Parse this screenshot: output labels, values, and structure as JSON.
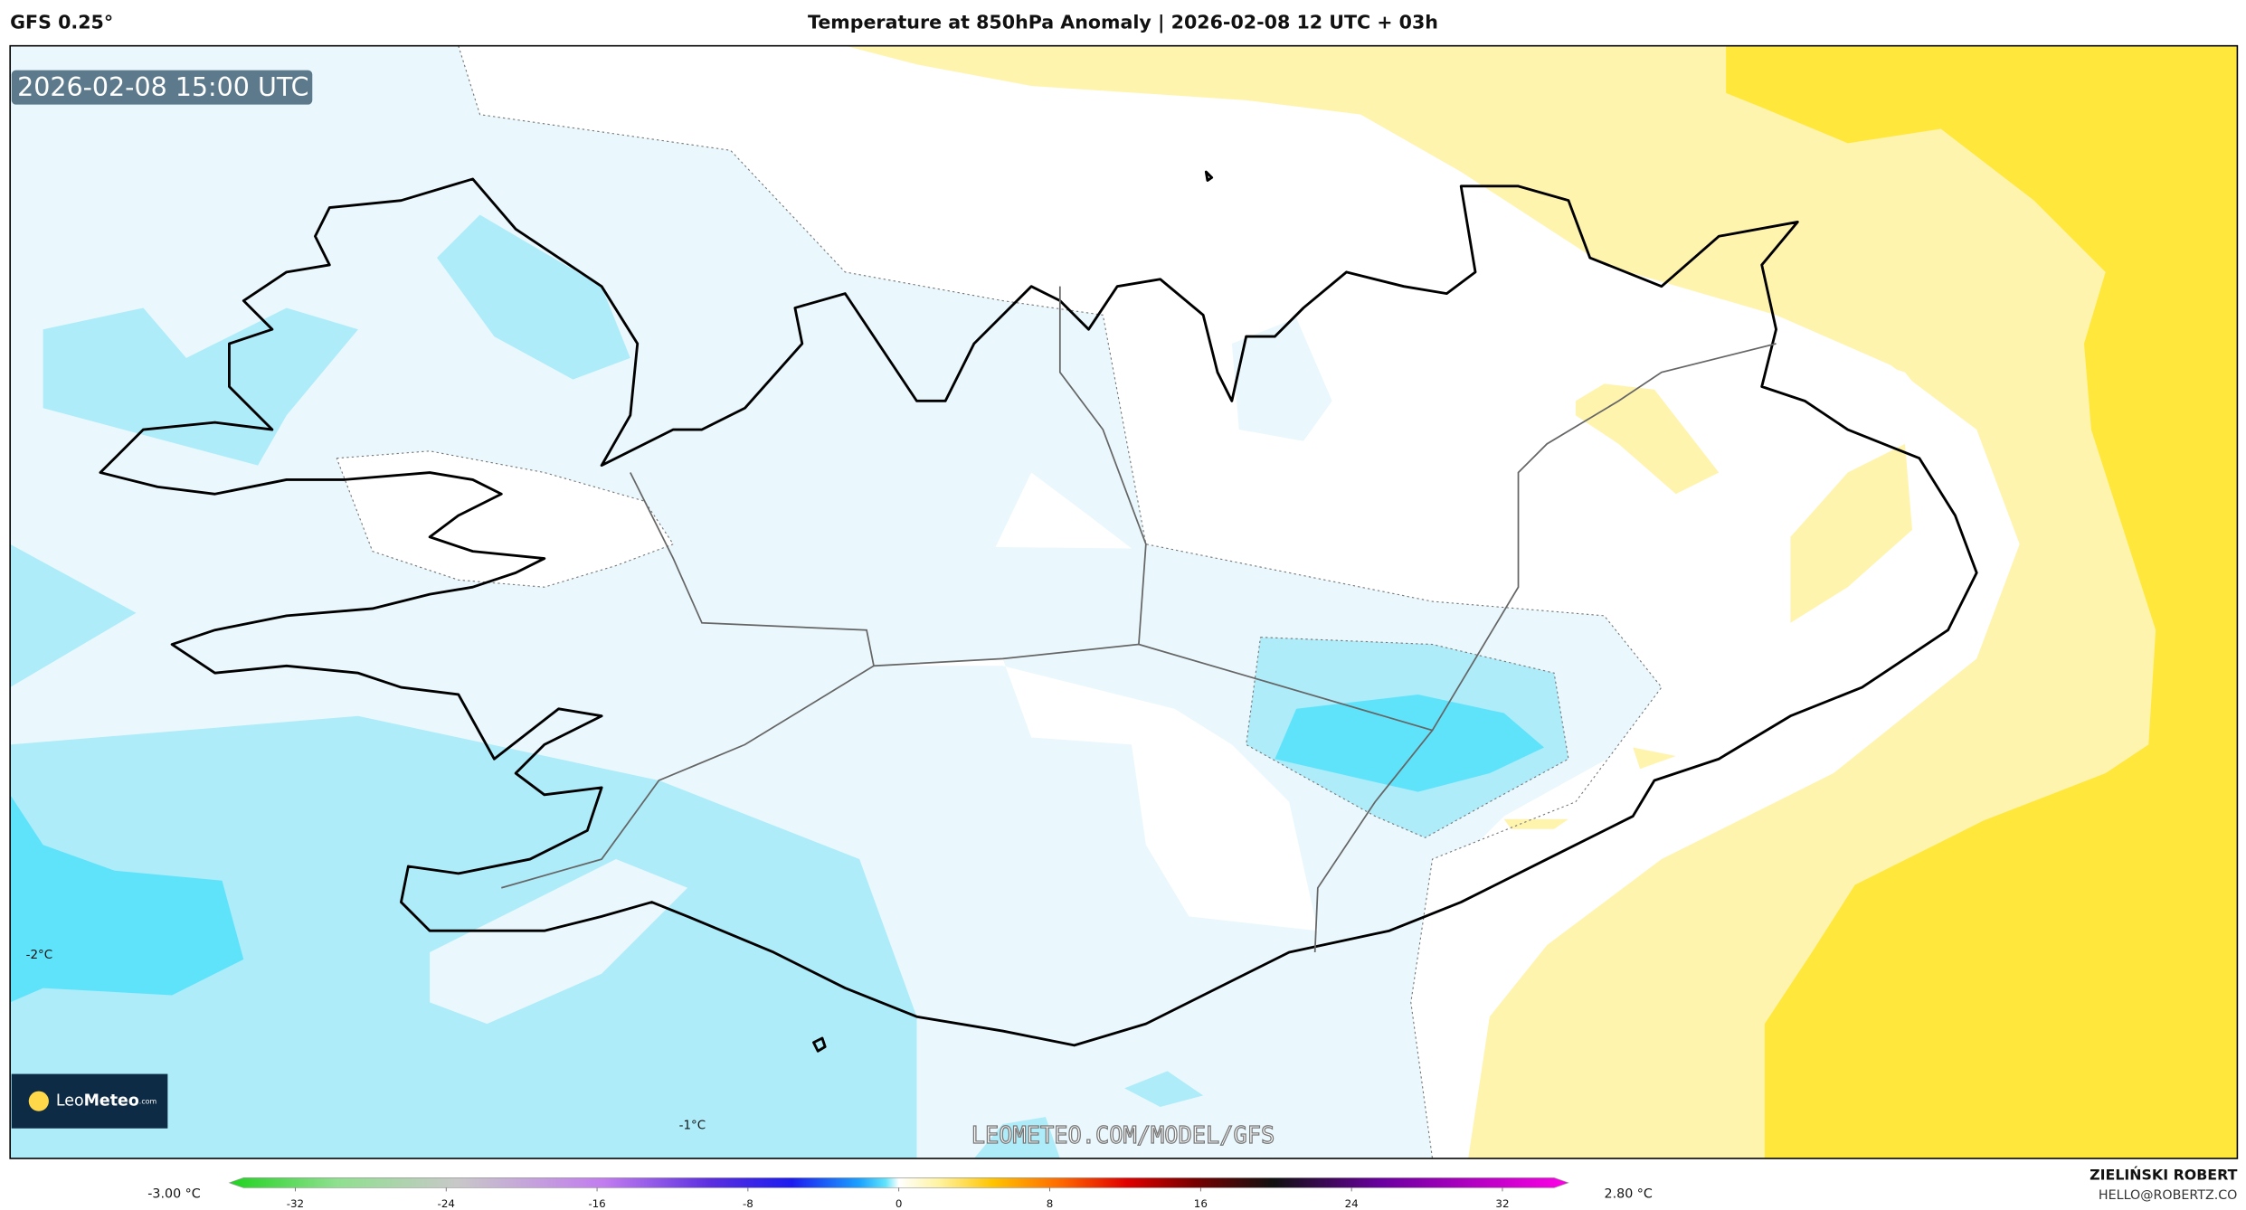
{
  "header": {
    "model": "GFS 0.25°",
    "title": "Temperature at 850hPa Anomaly | 2026-02-08 12 UTC + 03h"
  },
  "map": {
    "valid_time": "2026-02-08 15:00 UTC",
    "contour_labels": [
      "-2°C",
      "-1°C"
    ],
    "watermark": "LEOMETEO.COM/MODEL/GFS",
    "logo": {
      "prefix": "Leo",
      "name": "Meteo",
      "suffix": ".com"
    }
  },
  "colorbar": {
    "min_label": "-3.00 °C",
    "max_label": "2.80 °C",
    "range": [
      -35.5,
      35.5
    ],
    "ticks": [
      -32,
      -24,
      -16,
      -8,
      0,
      8,
      16,
      24,
      32
    ]
  },
  "footer": {
    "author": "ZIELIŃSKI ROBERT",
    "contact": "HELLO@ROBERTZ.CO"
  }
}
